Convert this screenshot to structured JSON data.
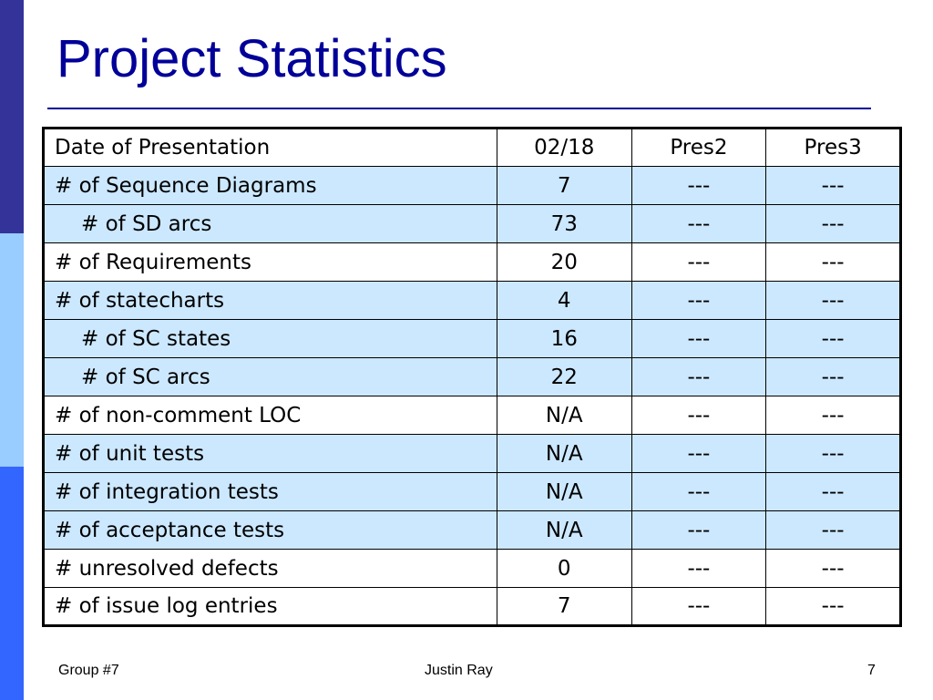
{
  "slide": {
    "title": "Project Statistics",
    "accent_colors": {
      "title": "#000099",
      "bar_dark": "#333399",
      "bar_light": "#99ccff",
      "bar_mid": "#3366ff",
      "row_shade": "#cce8ff"
    }
  },
  "table": {
    "header": [
      "Date of Presentation",
      "02/18",
      "Pres2",
      "Pres3"
    ],
    "rows": [
      {
        "label": "# of Sequence Diagrams",
        "values": [
          "7",
          "---",
          "---"
        ],
        "indent": false,
        "shaded": true
      },
      {
        "label": "# of SD arcs",
        "values": [
          "73",
          "---",
          "---"
        ],
        "indent": true,
        "shaded": true
      },
      {
        "label": "# of Requirements",
        "values": [
          "20",
          "---",
          "---"
        ],
        "indent": false,
        "shaded": false
      },
      {
        "label": "# of statecharts",
        "values": [
          "4",
          "---",
          "---"
        ],
        "indent": false,
        "shaded": true
      },
      {
        "label": "# of SC states",
        "values": [
          "16",
          "---",
          "---"
        ],
        "indent": true,
        "shaded": true
      },
      {
        "label": "# of SC arcs",
        "values": [
          "22",
          "---",
          "---"
        ],
        "indent": true,
        "shaded": true
      },
      {
        "label": "# of non-comment LOC",
        "values": [
          "N/A",
          "---",
          "---"
        ],
        "indent": false,
        "shaded": false
      },
      {
        "label": "# of unit tests",
        "values": [
          "N/A",
          "---",
          "---"
        ],
        "indent": false,
        "shaded": true
      },
      {
        "label": "# of integration tests",
        "values": [
          "N/A",
          "---",
          "---"
        ],
        "indent": false,
        "shaded": true
      },
      {
        "label": "# of acceptance tests",
        "values": [
          "N/A",
          "---",
          "---"
        ],
        "indent": false,
        "shaded": true
      },
      {
        "label": "# unresolved defects",
        "values": [
          "0",
          "---",
          "---"
        ],
        "indent": false,
        "shaded": false
      },
      {
        "label": "# of issue log entries",
        "values": [
          "7",
          "---",
          "---"
        ],
        "indent": false,
        "shaded": false
      }
    ]
  },
  "footer": {
    "left": "Group #7",
    "center": "Justin Ray",
    "right": "7"
  }
}
